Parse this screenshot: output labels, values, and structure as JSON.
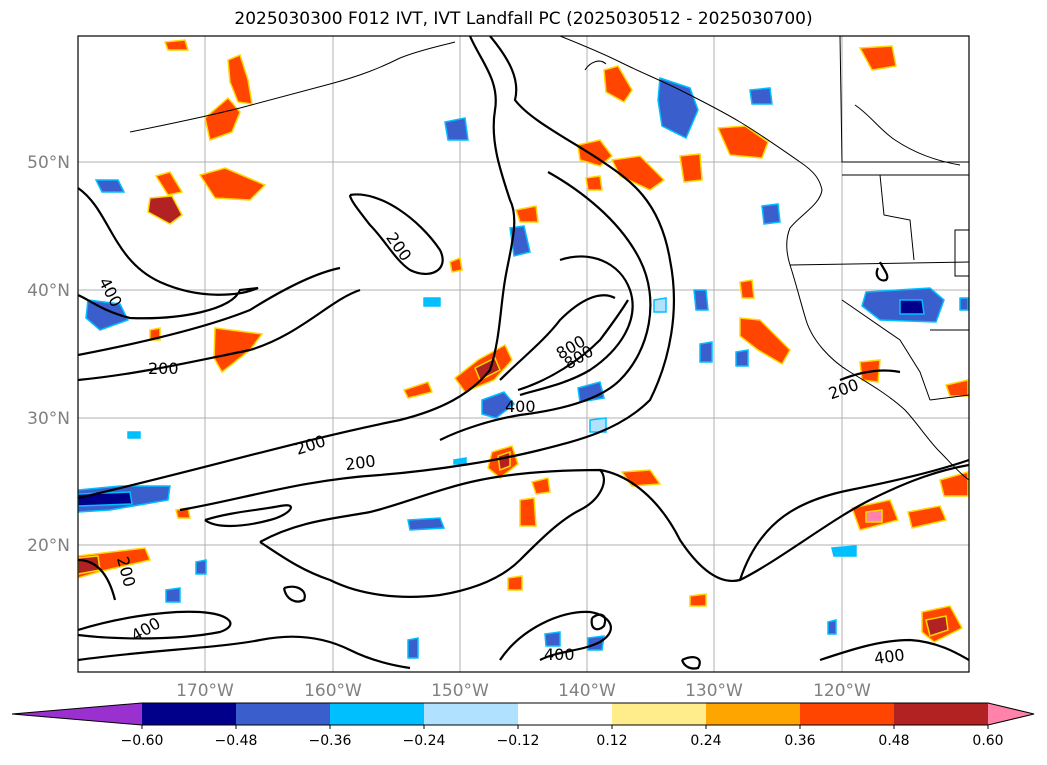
{
  "title": "2025030300 F012 IVT, IVT Landfall PC (2025030512 - 2025030700)",
  "map": {
    "lat_labels": [
      "50°N",
      "40°N",
      "30°N",
      "20°N"
    ],
    "lon_labels": [
      "170°W",
      "160°W",
      "150°W",
      "140°W",
      "130°W",
      "120°W"
    ],
    "contour_labels": [
      "200",
      "400",
      "200",
      "200",
      "200",
      "800",
      "800",
      "400",
      "200",
      "200",
      "400",
      "400",
      "400"
    ],
    "contour_color": "#000000"
  },
  "colorbar": {
    "ticks": [
      "−0.60",
      "−0.48",
      "−0.36",
      "−0.24",
      "−0.12",
      "0.12",
      "0.24",
      "0.36",
      "0.48",
      "0.60"
    ],
    "colors": [
      "#9b30d0",
      "#00008b",
      "#3a5fcd",
      "#00bfff",
      "#b0e2ff",
      "#ffffff",
      "#ffec8b",
      "#ffa500",
      "#ff4500",
      "#b22222",
      "#ff82ab"
    ],
    "extend": "both"
  }
}
